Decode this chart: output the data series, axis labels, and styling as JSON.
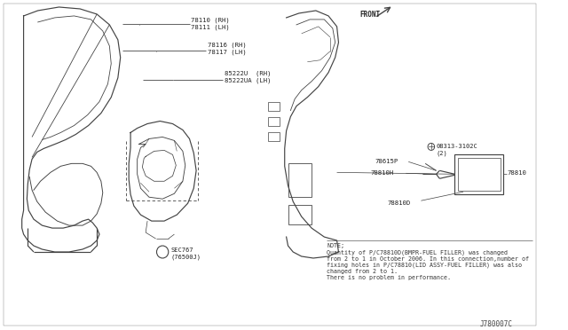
{
  "bg_color": "#ffffff",
  "line_color": "#444444",
  "text_color": "#222222",
  "fig_width": 6.4,
  "fig_height": 3.72,
  "dpi": 100,
  "note_text": "NOTE;\nQuantity of P/C78810D(BMPR-FUEL FILLER) was changed\nfrom 2 to 1 in October 2006. In this connection,number of\nfixing holes in P/C78810(LID ASSY-FUEL FILLER) was also\nchanged from 2 to 1.\nThere is no problem in performance.",
  "doc_id": "J780007C",
  "label1": "78110 (RH)\n78111 (LH)",
  "label2": "78116 (RH)\n78117 (LH)",
  "label3": "85222U  (RH)\n85222UA (LH)",
  "label_front": "FRONT",
  "label_08313": "08313-3102C\n(2)",
  "label_78615P": "78615P",
  "label_78810H": "78810H",
  "label_78810": "78810",
  "label_78810D": "78810D",
  "sec_label": "SEC767\n(76500J)"
}
